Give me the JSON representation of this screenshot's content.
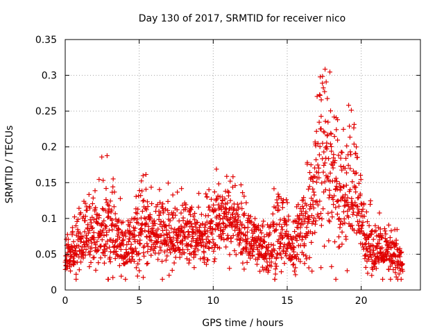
{
  "chart_data": {
    "type": "scatter",
    "title": "Day 130 of 2017, SRMTID for receiver nico",
    "xlabel": "GPS time / hours",
    "ylabel": "SRMTID / TECUs",
    "xlim": [
      0,
      24
    ],
    "ylim": [
      0,
      0.35
    ],
    "xticks": [
      0,
      5,
      10,
      15,
      20
    ],
    "xtick_labels": [
      "0",
      "5",
      "10",
      "15",
      "20"
    ],
    "yticks": [
      0,
      0.05,
      0.1,
      0.15,
      0.2,
      0.25,
      0.3,
      0.35
    ],
    "ytick_labels": [
      "0",
      "0.05",
      "0.1",
      "0.15",
      "0.2",
      "0.25",
      "0.3",
      "0.35"
    ],
    "grid": true,
    "marker": "+",
    "color": "#e00000",
    "series": [
      {
        "name": "SRMTID",
        "profile_x": [
          0,
          0.5,
          1,
          1.5,
          2,
          2.5,
          3,
          3.2,
          3.6,
          4,
          4.5,
          5,
          5.5,
          6,
          6.5,
          7,
          7.5,
          8,
          8.5,
          9,
          9.5,
          10,
          10.5,
          11,
          11.5,
          12,
          12.5,
          13,
          13.5,
          14,
          14.3,
          14.7,
          15,
          15.5,
          16,
          16.5,
          17,
          17.3,
          17.6,
          18,
          18.5,
          19,
          19.3,
          19.6,
          20,
          20.5,
          21,
          21.5,
          22,
          22.3,
          22.8
        ],
        "profile_median": [
          0.045,
          0.055,
          0.065,
          0.075,
          0.08,
          0.085,
          0.085,
          0.075,
          0.065,
          0.055,
          0.06,
          0.075,
          0.085,
          0.08,
          0.075,
          0.07,
          0.075,
          0.08,
          0.075,
          0.07,
          0.075,
          0.085,
          0.1,
          0.105,
          0.095,
          0.08,
          0.07,
          0.055,
          0.05,
          0.06,
          0.075,
          0.07,
          0.065,
          0.06,
          0.085,
          0.1,
          0.13,
          0.17,
          0.19,
          0.16,
          0.14,
          0.13,
          0.14,
          0.13,
          0.09,
          0.065,
          0.055,
          0.05,
          0.045,
          0.045,
          0.035
        ],
        "profile_spread": [
          0.015,
          0.02,
          0.025,
          0.025,
          0.03,
          0.035,
          0.04,
          0.03,
          0.025,
          0.02,
          0.025,
          0.03,
          0.035,
          0.03,
          0.03,
          0.025,
          0.025,
          0.025,
          0.025,
          0.02,
          0.025,
          0.03,
          0.03,
          0.035,
          0.03,
          0.025,
          0.025,
          0.02,
          0.02,
          0.03,
          0.045,
          0.03,
          0.025,
          0.02,
          0.03,
          0.04,
          0.06,
          0.07,
          0.075,
          0.06,
          0.05,
          0.045,
          0.06,
          0.05,
          0.03,
          0.025,
          0.02,
          0.02,
          0.02,
          0.025,
          0.01
        ],
        "y_max": 0.315,
        "y_min": 0.015,
        "count": 1800,
        "seed": 130
      }
    ]
  }
}
